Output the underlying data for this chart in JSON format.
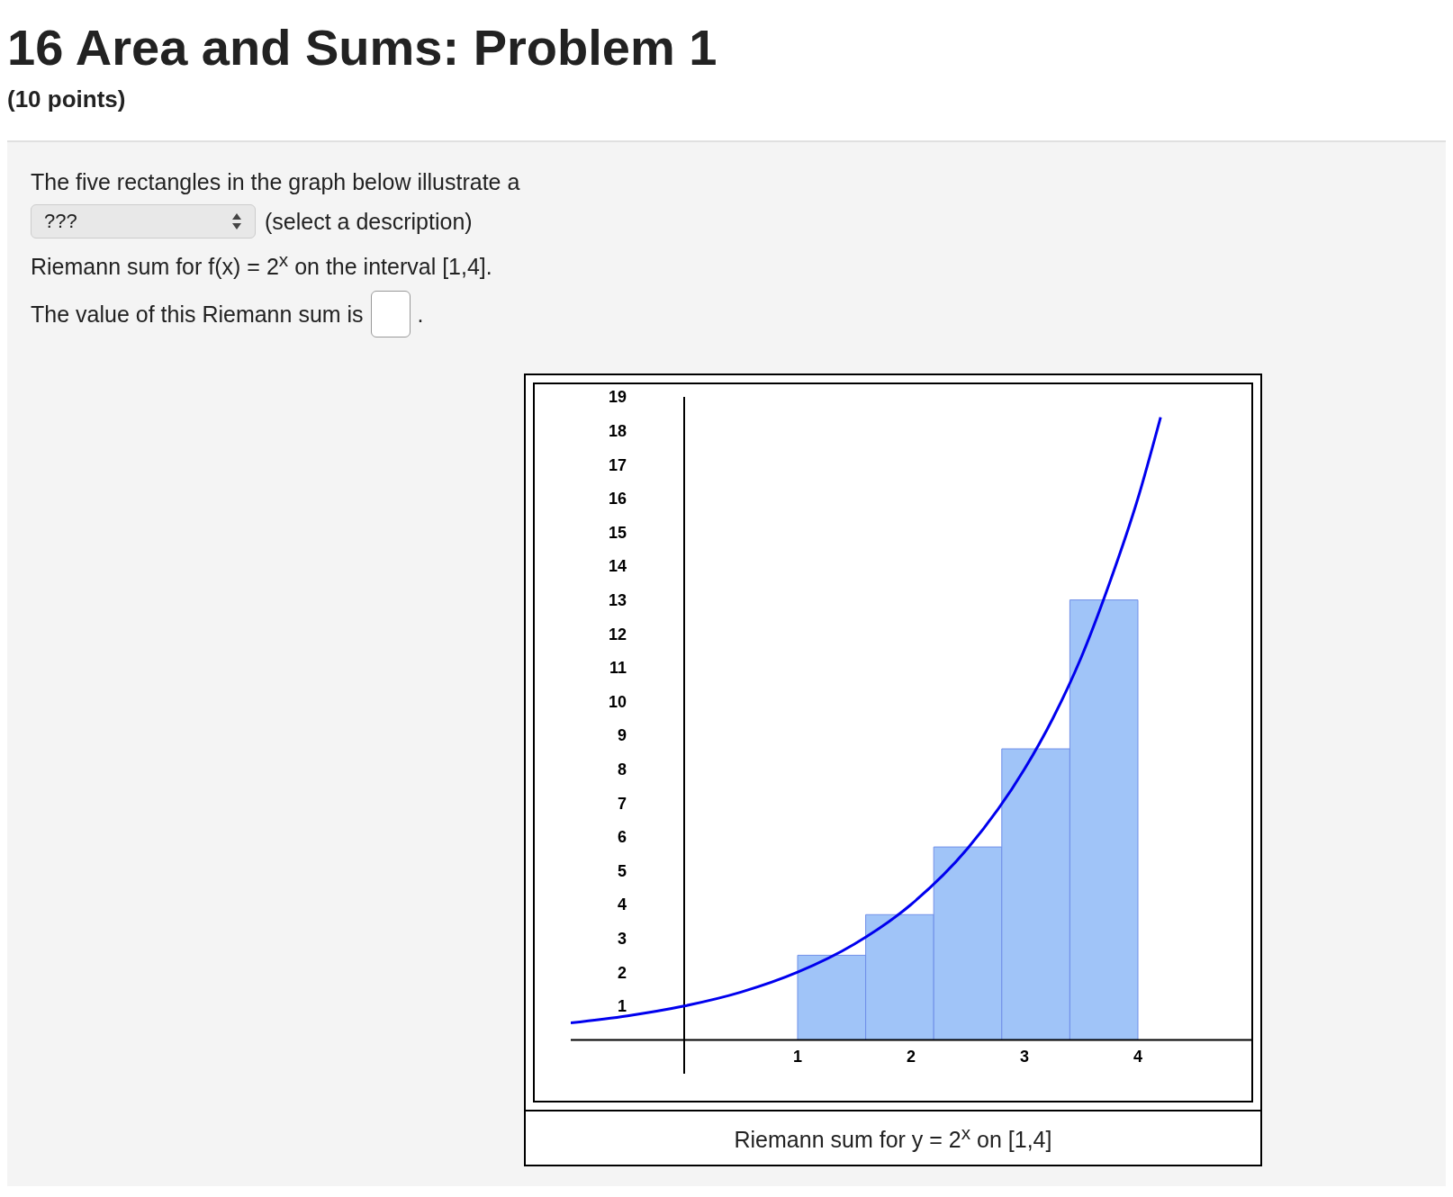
{
  "chart_data": {
    "type": "histogram",
    "title": "16 Area and Sums: Problem 1",
    "subtitle": "(10 points)",
    "annotations": [
      "The five rectangles in the graph below illustrate a",
      "???",
      "(select a description)",
      "Riemann sum for f(x) = 2$^{x}$ on the interval [1,4].",
      "The value of this Riemann sum is",
      "Riemann sum for y = 2$^{x}$ on [1,4]",
      "."
    ],
    "bins": [
      1,
      1.6,
      2.2,
      2.8,
      3.4,
      4
    ],
    "values": [
      2.5,
      3.7,
      5.7,
      8.6,
      13
    ],
    "color": "#a0c4f8",
    "series": [
      {
        "type": "line",
        "color": "#0000ee",
        "x": [
          -1,
          -0.5,
          0,
          0.5,
          1,
          1.5,
          2,
          2.5,
          3,
          3.25,
          3.5,
          3.75,
          4,
          4.2
        ],
        "values": [
          0.5,
          0.71,
          1,
          1.41,
          2,
          2.83,
          4,
          5.66,
          8,
          9.5,
          11.3,
          13.5,
          16,
          18.4
        ]
      }
    ],
    "xlim": [
      -1,
      5
    ],
    "ylim": [
      -1,
      19
    ],
    "xticks": [
      1,
      2,
      3,
      4
    ],
    "yticks": [
      1,
      2,
      3,
      4,
      5,
      6,
      7,
      8,
      9,
      10,
      11,
      12,
      13,
      14,
      15,
      16,
      17,
      18,
      19
    ],
    "grid": false
  }
}
